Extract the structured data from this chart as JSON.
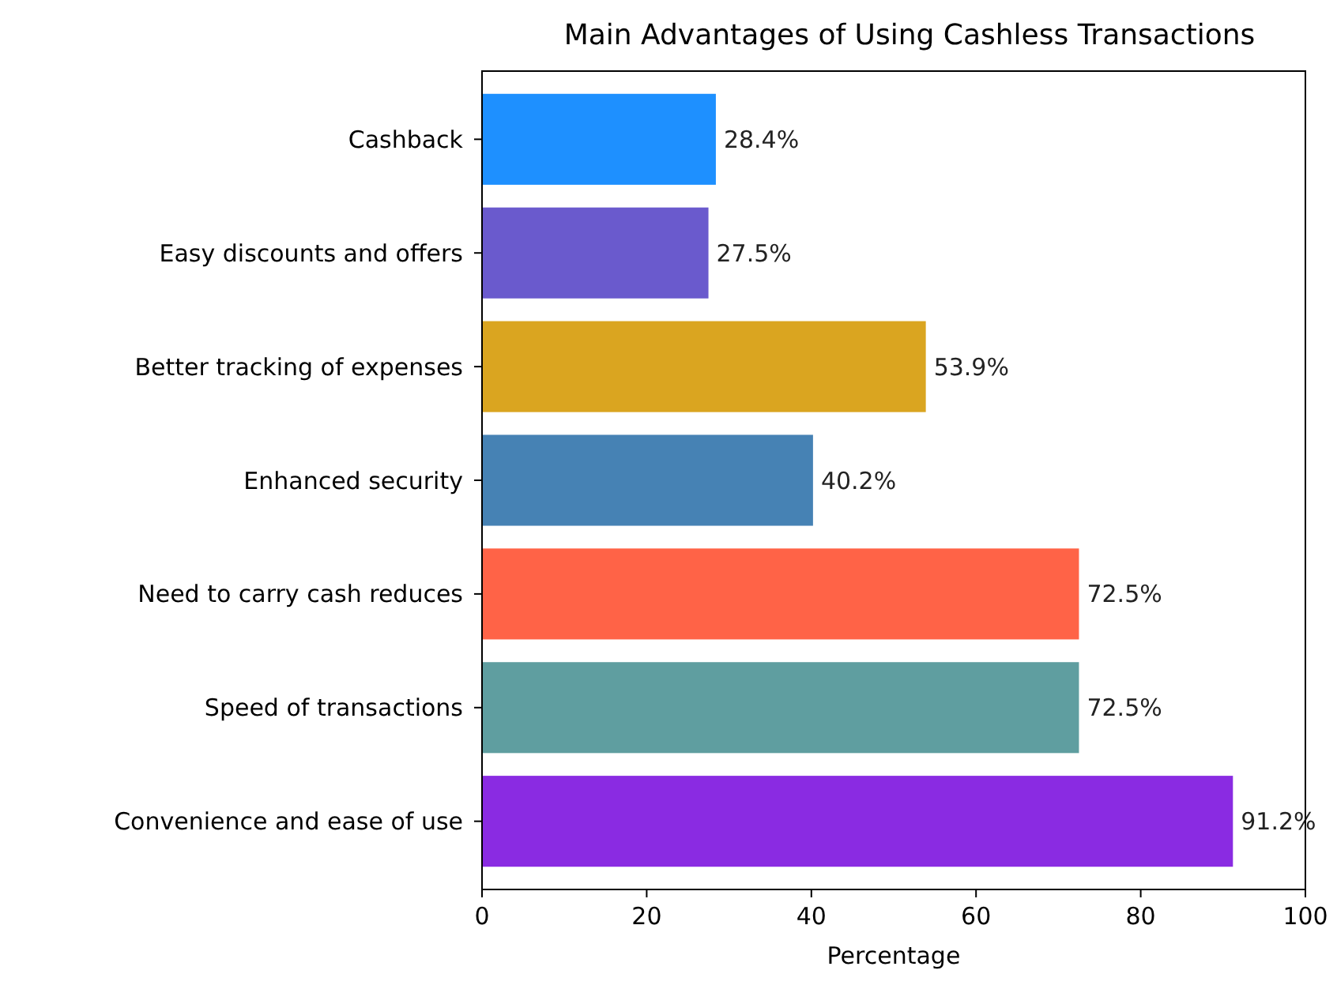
{
  "chart_data": {
    "type": "bar",
    "orientation": "horizontal",
    "title": "Main Advantages of Using Cashless Transactions",
    "xlabel": "Percentage",
    "categories": [
      "Cashback",
      "Easy discounts and offers",
      "Better tracking of expenses",
      "Enhanced security",
      "Need to carry cash reduces",
      "Speed of transactions",
      "Convenience and ease of use"
    ],
    "values": [
      28.4,
      27.5,
      53.9,
      40.2,
      72.5,
      72.5,
      91.2
    ],
    "colors": [
      "#1e90ff",
      "#6a5acd",
      "#daa520",
      "#4682b4",
      "#ff6347",
      "#5f9ea0",
      "#8a2be2"
    ],
    "value_labels": [
      "28.4%",
      "27.5%",
      "53.9%",
      "40.2%",
      "72.5%",
      "72.5%",
      "91.2%"
    ],
    "xlim": [
      0,
      100
    ],
    "xticks": [
      0,
      20,
      40,
      60,
      80,
      100
    ]
  }
}
